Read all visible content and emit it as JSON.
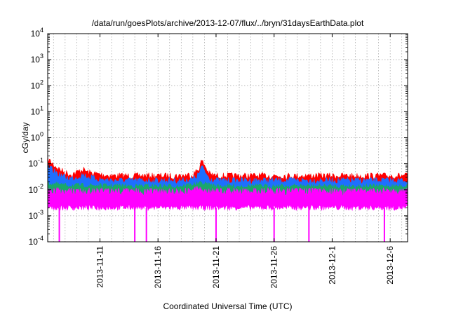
{
  "chart_data": {
    "type": "area",
    "title": "/data/run/goesPlots/archive/2013-12-07/flux/../bryn/31daysEarthData.plot",
    "xlabel": "Coordinated Universal Time (UTC)",
    "ylabel": "cGy/day",
    "y_scale": "log",
    "ylim": [
      0.0001,
      10000
    ],
    "xlim": [
      "2013-11-06 12:00",
      "2013-12-07 12:00"
    ],
    "grid": true,
    "x_ticks": [
      "2013-11-11",
      "2013-11-16",
      "2013-11-21",
      "2013-11-26",
      "2013-12-1",
      "2013-12-6"
    ],
    "y_ticks": [
      {
        "value": 0.0001,
        "base": "10",
        "exp": "-4"
      },
      {
        "value": 0.001,
        "base": "10",
        "exp": "-3"
      },
      {
        "value": 0.01,
        "base": "10",
        "exp": "-2"
      },
      {
        "value": 0.1,
        "base": "10",
        "exp": "-1"
      },
      {
        "value": 1,
        "base": "10",
        "exp": "0"
      },
      {
        "value": 10,
        "base": "10",
        "exp": "1"
      },
      {
        "value": 100,
        "base": "10",
        "exp": "2"
      },
      {
        "value": 1000,
        "base": "10",
        "exp": "3"
      },
      {
        "value": 10000,
        "base": "10",
        "exp": "4"
      }
    ],
    "series": [
      {
        "color": "#ff0000",
        "x": [
          "2013-11-06 12:00",
          "2013-11-07 00:00",
          "2013-11-07 12:00",
          "2013-11-08 00:00",
          "2013-11-08 12:00",
          "2013-11-09 00:00",
          "2013-11-09 12:00",
          "2013-11-10 00:00",
          "2013-11-11 00:00",
          "2013-11-12 00:00",
          "2013-11-13 00:00",
          "2013-11-14 00:00",
          "2013-11-16 00:00",
          "2013-11-18 00:00",
          "2013-11-19 00:00",
          "2013-11-19 12:00",
          "2013-11-19 18:00",
          "2013-11-20 00:00",
          "2013-11-20 06:00",
          "2013-11-20 12:00",
          "2013-11-21 00:00",
          "2013-11-22 00:00",
          "2013-11-24 00:00",
          "2013-11-26 00:00",
          "2013-11-28 00:00",
          "2013-11-30 00:00",
          "2013-12-02 00:00",
          "2013-12-04 00:00",
          "2013-12-06 00:00",
          "2013-12-07 12:00"
        ],
        "values": [
          0.2,
          0.12,
          0.08,
          0.06,
          0.05,
          0.06,
          0.08,
          0.06,
          0.05,
          0.045,
          0.045,
          0.045,
          0.045,
          0.045,
          0.05,
          0.08,
          0.17,
          0.12,
          0.07,
          0.05,
          0.045,
          0.045,
          0.045,
          0.045,
          0.045,
          0.045,
          0.045,
          0.045,
          0.045,
          0.045
        ]
      },
      {
        "color": "#1e6fff",
        "x": [
          "2013-11-06 12:00",
          "2013-11-07 00:00",
          "2013-11-07 12:00",
          "2013-11-08 00:00",
          "2013-11-08 12:00",
          "2013-11-09 00:00",
          "2013-11-09 12:00",
          "2013-11-10 00:00",
          "2013-11-11 00:00",
          "2013-11-12 00:00",
          "2013-11-13 00:00",
          "2013-11-14 00:00",
          "2013-11-16 00:00",
          "2013-11-18 00:00",
          "2013-11-19 00:00",
          "2013-11-19 12:00",
          "2013-11-19 18:00",
          "2013-11-20 00:00",
          "2013-11-20 06:00",
          "2013-11-20 12:00",
          "2013-11-21 00:00",
          "2013-11-22 00:00",
          "2013-11-24 00:00",
          "2013-11-26 00:00",
          "2013-11-28 00:00",
          "2013-11-30 00:00",
          "2013-12-02 00:00",
          "2013-12-04 00:00",
          "2013-12-06 00:00",
          "2013-12-07 12:00"
        ],
        "values": [
          0.1,
          0.07,
          0.05,
          0.04,
          0.035,
          0.04,
          0.05,
          0.04,
          0.033,
          0.03,
          0.03,
          0.03,
          0.03,
          0.03,
          0.033,
          0.05,
          0.1,
          0.07,
          0.045,
          0.035,
          0.03,
          0.03,
          0.03,
          0.03,
          0.03,
          0.03,
          0.03,
          0.03,
          0.03,
          0.03
        ]
      },
      {
        "color": "#1aa86a",
        "x": [
          "2013-11-06 12:00",
          "2013-11-08 00:00",
          "2013-11-10 00:00",
          "2013-11-14 00:00",
          "2013-11-18 00:00",
          "2013-11-19 18:00",
          "2013-11-21 00:00",
          "2013-11-26 00:00",
          "2013-12-01 00:00",
          "2013-12-07 12:00"
        ],
        "values": [
          0.022,
          0.018,
          0.018,
          0.017,
          0.017,
          0.022,
          0.017,
          0.017,
          0.017,
          0.017
        ]
      },
      {
        "color": "#ff00ff",
        "x": [
          "2013-11-06 12:00",
          "2013-11-08 00:00",
          "2013-11-10 00:00",
          "2013-11-14 00:00",
          "2013-11-18 00:00",
          "2013-11-19 18:00",
          "2013-11-21 00:00",
          "2013-11-26 00:00",
          "2013-12-01 00:00",
          "2013-12-07 12:00"
        ],
        "values": [
          0.013,
          0.012,
          0.012,
          0.012,
          0.012,
          0.014,
          0.012,
          0.012,
          0.012,
          0.012
        ],
        "floor": 0.002,
        "dropouts": [
          "2013-11-07 12:00",
          "2013-11-14 00:00",
          "2013-11-15 00:00",
          "2013-11-21 00:00",
          "2013-11-26 00:00",
          "2013-11-29 00:00",
          "2013-12-05 12:00"
        ]
      }
    ]
  }
}
